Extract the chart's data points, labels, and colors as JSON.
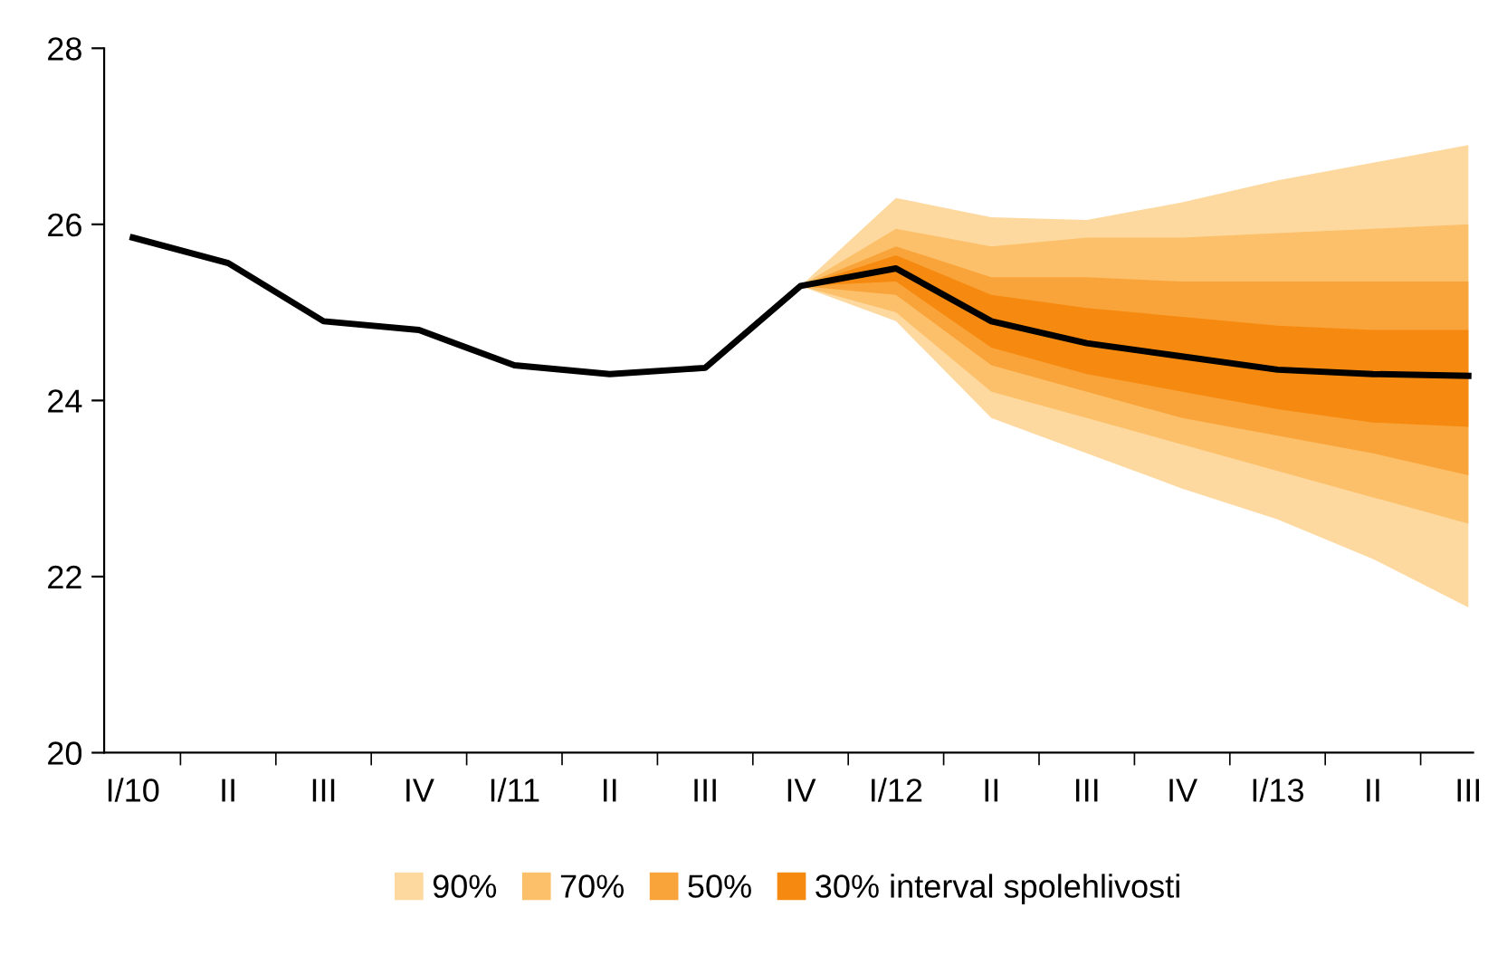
{
  "chart_data": {
    "type": "line",
    "categories": [
      "I/10",
      "II",
      "III",
      "IV",
      "I/11",
      "II",
      "III",
      "IV",
      "I/12",
      "II",
      "III",
      "IV",
      "I/13",
      "II",
      "III"
    ],
    "ylim": [
      20,
      28
    ],
    "yticks": [
      20,
      22,
      24,
      26,
      28
    ],
    "grid": false,
    "legend": "bottom",
    "marker": "none",
    "line_style": "solid",
    "series": [
      {
        "name": "90%",
        "type": "line",
        "color": "#fdd9a0",
        "values": [
          null,
          null,
          null,
          null,
          null,
          null,
          null,
          null,
          null,
          null,
          null,
          null,
          null,
          null,
          null
        ],
        "lower": [
          null,
          null,
          null,
          null,
          null,
          null,
          null,
          25.3,
          24.9,
          23.8,
          23.4,
          23.0,
          22.65,
          22.2,
          21.65
        ],
        "upper": [
          null,
          null,
          null,
          null,
          null,
          null,
          null,
          25.3,
          26.3,
          26.08,
          26.05,
          26.25,
          26.5,
          26.7,
          26.9
        ]
      },
      {
        "name": "70%",
        "type": "line",
        "color": "#fcc06a",
        "values": [
          null,
          null,
          null,
          null,
          null,
          null,
          null,
          null,
          null,
          null,
          null,
          null,
          null,
          null,
          null
        ],
        "lower": [
          null,
          null,
          null,
          null,
          null,
          null,
          null,
          25.3,
          25.0,
          24.1,
          23.8,
          23.5,
          23.2,
          22.9,
          22.6
        ],
        "upper": [
          null,
          null,
          null,
          null,
          null,
          null,
          null,
          25.3,
          25.95,
          25.75,
          25.85,
          25.85,
          25.9,
          25.95,
          26.0
        ]
      },
      {
        "name": "50%",
        "type": "line",
        "color": "#f9a43a",
        "values": [
          null,
          null,
          null,
          null,
          null,
          null,
          null,
          null,
          null,
          null,
          null,
          null,
          null,
          null,
          null
        ],
        "lower": [
          null,
          null,
          null,
          null,
          null,
          null,
          null,
          25.3,
          25.2,
          24.4,
          24.1,
          23.8,
          23.6,
          23.4,
          23.15
        ],
        "upper": [
          null,
          null,
          null,
          null,
          null,
          null,
          null,
          25.3,
          25.75,
          25.4,
          25.4,
          25.35,
          25.35,
          25.35,
          25.35
        ]
      },
      {
        "name": "30% interval spolehlivosti",
        "type": "line",
        "color": "#f68a10",
        "values": [
          null,
          null,
          null,
          null,
          null,
          null,
          null,
          null,
          null,
          null,
          null,
          null,
          null,
          null,
          null
        ],
        "lower": [
          null,
          null,
          null,
          null,
          null,
          null,
          null,
          25.3,
          25.35,
          24.6,
          24.3,
          24.1,
          23.9,
          23.75,
          23.7
        ],
        "upper": [
          null,
          null,
          null,
          null,
          null,
          null,
          null,
          25.3,
          25.65,
          25.2,
          25.05,
          24.95,
          24.85,
          24.8,
          24.8
        ]
      },
      {
        "type": "line",
        "color": "#000000",
        "values": [
          25.85,
          25.56,
          24.9,
          24.8,
          24.4,
          24.3,
          24.37,
          25.3,
          25.5,
          24.9,
          24.65,
          24.5,
          24.35,
          24.3,
          24.28
        ]
      }
    ]
  }
}
